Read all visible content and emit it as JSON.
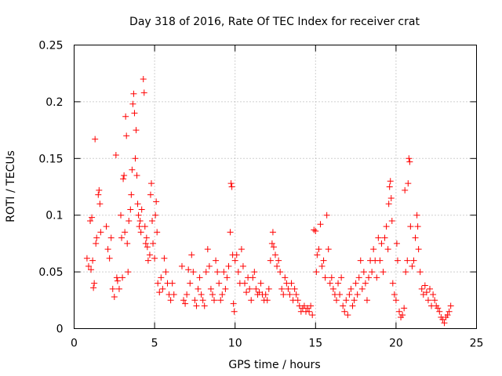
{
  "chart_data": {
    "type": "scatter",
    "title": "Day 318 of 2016, Rate Of TEC Index for receiver crat",
    "xlabel": "GPS time / hours",
    "ylabel": "ROTI / TECUs",
    "xlim": [
      0,
      25
    ],
    "ylim": [
      0,
      0.25
    ],
    "xticks": [
      0,
      5,
      10,
      15,
      20,
      25
    ],
    "xtick_labels": [
      "0",
      "5",
      "10",
      "15",
      "20",
      "25"
    ],
    "yticks": [
      0,
      0.05,
      0.1,
      0.15,
      0.2,
      0.25
    ],
    "ytick_labels": [
      "0",
      "0.05",
      "0.1",
      "0.15",
      "0.2",
      "0.25"
    ],
    "grid": true,
    "marker": "+",
    "colors": {
      "points": "#ff0000",
      "grid": "#a0a0a0",
      "axis": "#000000"
    },
    "series": [
      {
        "name": "ROTI",
        "points": [
          [
            0.8,
            0.062
          ],
          [
            0.9,
            0.055
          ],
          [
            1.0,
            0.095
          ],
          [
            1.05,
            0.052
          ],
          [
            1.1,
            0.098
          ],
          [
            1.15,
            0.06
          ],
          [
            1.2,
            0.036
          ],
          [
            1.25,
            0.04
          ],
          [
            1.3,
            0.167
          ],
          [
            1.35,
            0.075
          ],
          [
            1.4,
            0.08
          ],
          [
            1.5,
            0.118
          ],
          [
            1.55,
            0.122
          ],
          [
            1.6,
            0.11
          ],
          [
            1.65,
            0.085
          ],
          [
            2.0,
            0.09
          ],
          [
            2.1,
            0.07
          ],
          [
            2.2,
            0.062
          ],
          [
            2.3,
            0.08
          ],
          [
            2.4,
            0.035
          ],
          [
            2.5,
            0.028
          ],
          [
            2.6,
            0.153
          ],
          [
            2.65,
            0.045
          ],
          [
            2.7,
            0.042
          ],
          [
            2.8,
            0.035
          ],
          [
            2.9,
            0.1
          ],
          [
            2.95,
            0.08
          ],
          [
            3.0,
            0.045
          ],
          [
            3.05,
            0.132
          ],
          [
            3.1,
            0.135
          ],
          [
            3.15,
            0.085
          ],
          [
            3.2,
            0.187
          ],
          [
            3.25,
            0.17
          ],
          [
            3.3,
            0.075
          ],
          [
            3.35,
            0.05
          ],
          [
            3.4,
            0.095
          ],
          [
            3.5,
            0.105
          ],
          [
            3.55,
            0.118
          ],
          [
            3.6,
            0.14
          ],
          [
            3.65,
            0.198
          ],
          [
            3.7,
            0.207
          ],
          [
            3.75,
            0.19
          ],
          [
            3.8,
            0.15
          ],
          [
            3.85,
            0.175
          ],
          [
            3.9,
            0.135
          ],
          [
            3.95,
            0.11
          ],
          [
            4.0,
            0.1
          ],
          [
            4.05,
            0.09
          ],
          [
            4.1,
            0.095
          ],
          [
            4.15,
            0.085
          ],
          [
            4.2,
            0.105
          ],
          [
            4.3,
            0.22
          ],
          [
            4.35,
            0.208
          ],
          [
            4.4,
            0.09
          ],
          [
            4.45,
            0.075
          ],
          [
            4.5,
            0.08
          ],
          [
            4.55,
            0.072
          ],
          [
            4.6,
            0.06
          ],
          [
            4.7,
            0.065
          ],
          [
            4.75,
            0.118
          ],
          [
            4.8,
            0.128
          ],
          [
            4.85,
            0.095
          ],
          [
            4.9,
            0.075
          ],
          [
            5.0,
            0.062
          ],
          [
            5.05,
            0.1
          ],
          [
            5.1,
            0.112
          ],
          [
            5.15,
            0.085
          ],
          [
            5.2,
            0.04
          ],
          [
            5.3,
            0.032
          ],
          [
            5.4,
            0.045
          ],
          [
            5.5,
            0.035
          ],
          [
            5.6,
            0.062
          ],
          [
            5.7,
            0.05
          ],
          [
            5.8,
            0.04
          ],
          [
            5.9,
            0.03
          ],
          [
            6.0,
            0.025
          ],
          [
            6.1,
            0.04
          ],
          [
            6.2,
            0.03
          ],
          [
            6.7,
            0.055
          ],
          [
            6.8,
            0.025
          ],
          [
            6.9,
            0.022
          ],
          [
            7.0,
            0.03
          ],
          [
            7.1,
            0.052
          ],
          [
            7.2,
            0.04
          ],
          [
            7.3,
            0.065
          ],
          [
            7.4,
            0.05
          ],
          [
            7.5,
            0.025
          ],
          [
            7.6,
            0.02
          ],
          [
            7.7,
            0.035
          ],
          [
            7.8,
            0.045
          ],
          [
            7.9,
            0.03
          ],
          [
            8.0,
            0.025
          ],
          [
            8.1,
            0.02
          ],
          [
            8.2,
            0.05
          ],
          [
            8.3,
            0.07
          ],
          [
            8.4,
            0.055
          ],
          [
            8.5,
            0.035
          ],
          [
            8.6,
            0.03
          ],
          [
            8.7,
            0.025
          ],
          [
            8.8,
            0.06
          ],
          [
            8.9,
            0.05
          ],
          [
            9.0,
            0.04
          ],
          [
            9.1,
            0.025
          ],
          [
            9.2,
            0.03
          ],
          [
            9.3,
            0.05
          ],
          [
            9.4,
            0.035
          ],
          [
            9.5,
            0.045
          ],
          [
            9.6,
            0.055
          ],
          [
            9.7,
            0.085
          ],
          [
            9.75,
            0.128
          ],
          [
            9.8,
            0.125
          ],
          [
            9.85,
            0.065
          ],
          [
            9.9,
            0.022
          ],
          [
            9.95,
            0.015
          ],
          [
            10.0,
            0.06
          ],
          [
            10.1,
            0.065
          ],
          [
            10.2,
            0.05
          ],
          [
            10.3,
            0.04
          ],
          [
            10.4,
            0.07
          ],
          [
            10.5,
            0.055
          ],
          [
            10.6,
            0.04
          ],
          [
            10.7,
            0.032
          ],
          [
            10.8,
            0.045
          ],
          [
            10.9,
            0.035
          ],
          [
            11.0,
            0.025
          ],
          [
            11.1,
            0.045
          ],
          [
            11.2,
            0.05
          ],
          [
            11.3,
            0.035
          ],
          [
            11.4,
            0.03
          ],
          [
            11.5,
            0.032
          ],
          [
            11.6,
            0.04
          ],
          [
            11.7,
            0.03
          ],
          [
            11.8,
            0.025
          ],
          [
            11.9,
            0.03
          ],
          [
            12.0,
            0.025
          ],
          [
            12.1,
            0.035
          ],
          [
            12.2,
            0.06
          ],
          [
            12.3,
            0.075
          ],
          [
            12.35,
            0.085
          ],
          [
            12.4,
            0.072
          ],
          [
            12.5,
            0.065
          ],
          [
            12.6,
            0.055
          ],
          [
            12.7,
            0.06
          ],
          [
            12.8,
            0.05
          ],
          [
            12.9,
            0.035
          ],
          [
            13.0,
            0.03
          ],
          [
            13.1,
            0.045
          ],
          [
            13.2,
            0.04
          ],
          [
            13.3,
            0.035
          ],
          [
            13.4,
            0.03
          ],
          [
            13.5,
            0.04
          ],
          [
            13.6,
            0.025
          ],
          [
            13.7,
            0.035
          ],
          [
            13.8,
            0.03
          ],
          [
            13.9,
            0.025
          ],
          [
            14.0,
            0.02
          ],
          [
            14.1,
            0.015
          ],
          [
            14.2,
            0.018
          ],
          [
            14.3,
            0.02
          ],
          [
            14.4,
            0.015
          ],
          [
            14.5,
            0.018
          ],
          [
            14.6,
            0.015
          ],
          [
            14.7,
            0.02
          ],
          [
            14.8,
            0.012
          ],
          [
            14.9,
            0.087
          ],
          [
            15.0,
            0.086
          ],
          [
            15.05,
            0.05
          ],
          [
            15.1,
            0.065
          ],
          [
            15.2,
            0.07
          ],
          [
            15.3,
            0.092
          ],
          [
            15.4,
            0.055
          ],
          [
            15.5,
            0.06
          ],
          [
            15.6,
            0.045
          ],
          [
            15.7,
            0.1
          ],
          [
            15.8,
            0.07
          ],
          [
            15.9,
            0.04
          ],
          [
            16.0,
            0.045
          ],
          [
            16.1,
            0.035
          ],
          [
            16.2,
            0.03
          ],
          [
            16.3,
            0.025
          ],
          [
            16.4,
            0.04
          ],
          [
            16.5,
            0.03
          ],
          [
            16.6,
            0.045
          ],
          [
            16.7,
            0.02
          ],
          [
            16.8,
            0.015
          ],
          [
            16.9,
            0.025
          ],
          [
            17.0,
            0.012
          ],
          [
            17.1,
            0.03
          ],
          [
            17.2,
            0.035
          ],
          [
            17.3,
            0.02
          ],
          [
            17.4,
            0.025
          ],
          [
            17.5,
            0.04
          ],
          [
            17.6,
            0.03
          ],
          [
            17.7,
            0.045
          ],
          [
            17.8,
            0.06
          ],
          [
            17.9,
            0.035
          ],
          [
            18.0,
            0.05
          ],
          [
            18.1,
            0.04
          ],
          [
            18.2,
            0.025
          ],
          [
            18.3,
            0.045
          ],
          [
            18.4,
            0.06
          ],
          [
            18.5,
            0.05
          ],
          [
            18.6,
            0.07
          ],
          [
            18.7,
            0.06
          ],
          [
            18.8,
            0.045
          ],
          [
            18.9,
            0.08
          ],
          [
            19.0,
            0.06
          ],
          [
            19.1,
            0.075
          ],
          [
            19.2,
            0.05
          ],
          [
            19.3,
            0.08
          ],
          [
            19.4,
            0.09
          ],
          [
            19.5,
            0.07
          ],
          [
            19.55,
            0.11
          ],
          [
            19.6,
            0.125
          ],
          [
            19.65,
            0.13
          ],
          [
            19.7,
            0.115
          ],
          [
            19.75,
            0.095
          ],
          [
            19.8,
            0.04
          ],
          [
            19.9,
            0.03
          ],
          [
            20.0,
            0.025
          ],
          [
            20.05,
            0.075
          ],
          [
            20.1,
            0.06
          ],
          [
            20.2,
            0.015
          ],
          [
            20.3,
            0.01
          ],
          [
            20.4,
            0.012
          ],
          [
            20.5,
            0.018
          ],
          [
            20.55,
            0.122
          ],
          [
            20.6,
            0.05
          ],
          [
            20.7,
            0.06
          ],
          [
            20.75,
            0.128
          ],
          [
            20.8,
            0.15
          ],
          [
            20.85,
            0.147
          ],
          [
            20.9,
            0.09
          ],
          [
            21.0,
            0.055
          ],
          [
            21.1,
            0.06
          ],
          [
            21.2,
            0.08
          ],
          [
            21.3,
            0.1
          ],
          [
            21.35,
            0.09
          ],
          [
            21.4,
            0.07
          ],
          [
            21.5,
            0.05
          ],
          [
            21.6,
            0.035
          ],
          [
            21.7,
            0.03
          ],
          [
            21.8,
            0.038
          ],
          [
            21.9,
            0.032
          ],
          [
            22.0,
            0.025
          ],
          [
            22.1,
            0.035
          ],
          [
            22.2,
            0.02
          ],
          [
            22.3,
            0.03
          ],
          [
            22.4,
            0.025
          ],
          [
            22.5,
            0.02
          ],
          [
            22.6,
            0.018
          ],
          [
            22.7,
            0.015
          ],
          [
            22.8,
            0.01
          ],
          [
            22.9,
            0.008
          ],
          [
            23.0,
            0.005
          ],
          [
            23.1,
            0.01
          ],
          [
            23.2,
            0.012
          ],
          [
            23.3,
            0.015
          ],
          [
            23.4,
            0.02
          ]
        ]
      }
    ]
  }
}
